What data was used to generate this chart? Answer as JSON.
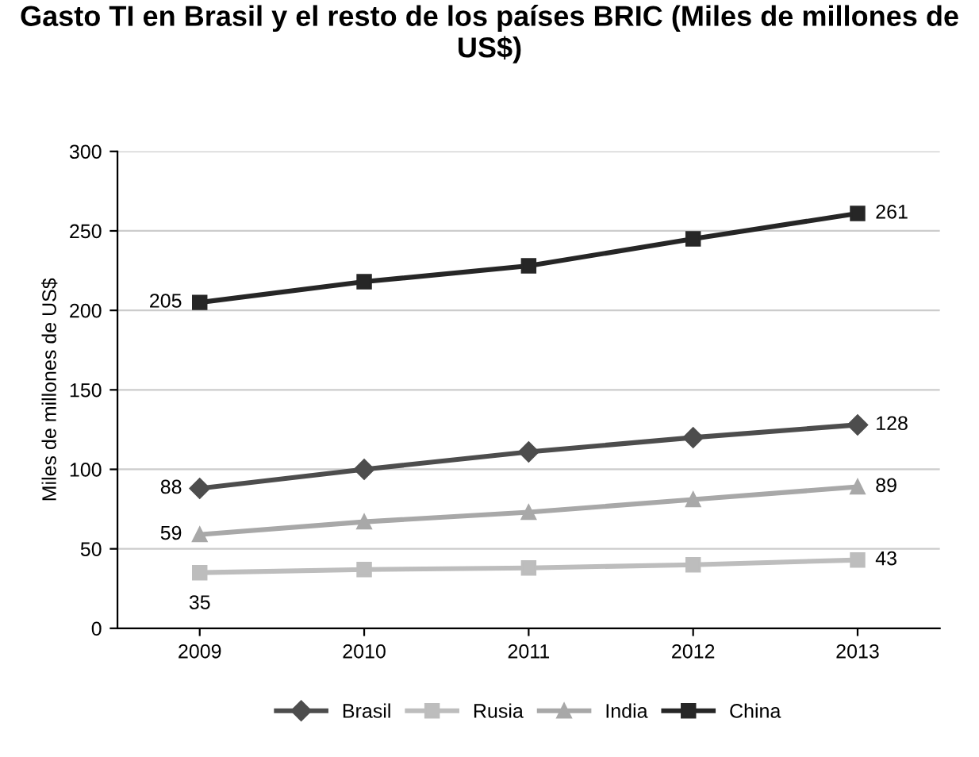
{
  "chart_data": {
    "type": "line",
    "title": "Gasto TI en Brasil y el resto de los países BRIC (Miles de millones de US$)",
    "ylabel": "Miles de millones de US$",
    "categories": [
      "2009",
      "2010",
      "2011",
      "2012",
      "2013"
    ],
    "ylim": [
      0,
      300
    ],
    "yticks": [
      0,
      50,
      100,
      150,
      200,
      250,
      300
    ],
    "grid": "y",
    "legend": "bottom",
    "series": [
      {
        "name": "Brasil",
        "color": "#4d4d4d",
        "marker": "diamond",
        "values": [
          88,
          100,
          111,
          120,
          128
        ],
        "value_labels": [
          "88",
          null,
          null,
          null,
          "128"
        ]
      },
      {
        "name": "Rusia",
        "color": "#bdbdbd",
        "marker": "square",
        "values": [
          35,
          37,
          38,
          40,
          43
        ],
        "value_labels": [
          "35",
          null,
          null,
          null,
          "43"
        ]
      },
      {
        "name": "India",
        "color": "#a8a8a8",
        "marker": "triangle",
        "values": [
          59,
          67,
          73,
          81,
          89
        ],
        "value_labels": [
          "59",
          null,
          null,
          null,
          "89"
        ]
      },
      {
        "name": "China",
        "color": "#262626",
        "marker": "square",
        "values": [
          205,
          218,
          228,
          245,
          261
        ],
        "value_labels": [
          "205",
          null,
          null,
          null,
          "261"
        ]
      }
    ]
  }
}
